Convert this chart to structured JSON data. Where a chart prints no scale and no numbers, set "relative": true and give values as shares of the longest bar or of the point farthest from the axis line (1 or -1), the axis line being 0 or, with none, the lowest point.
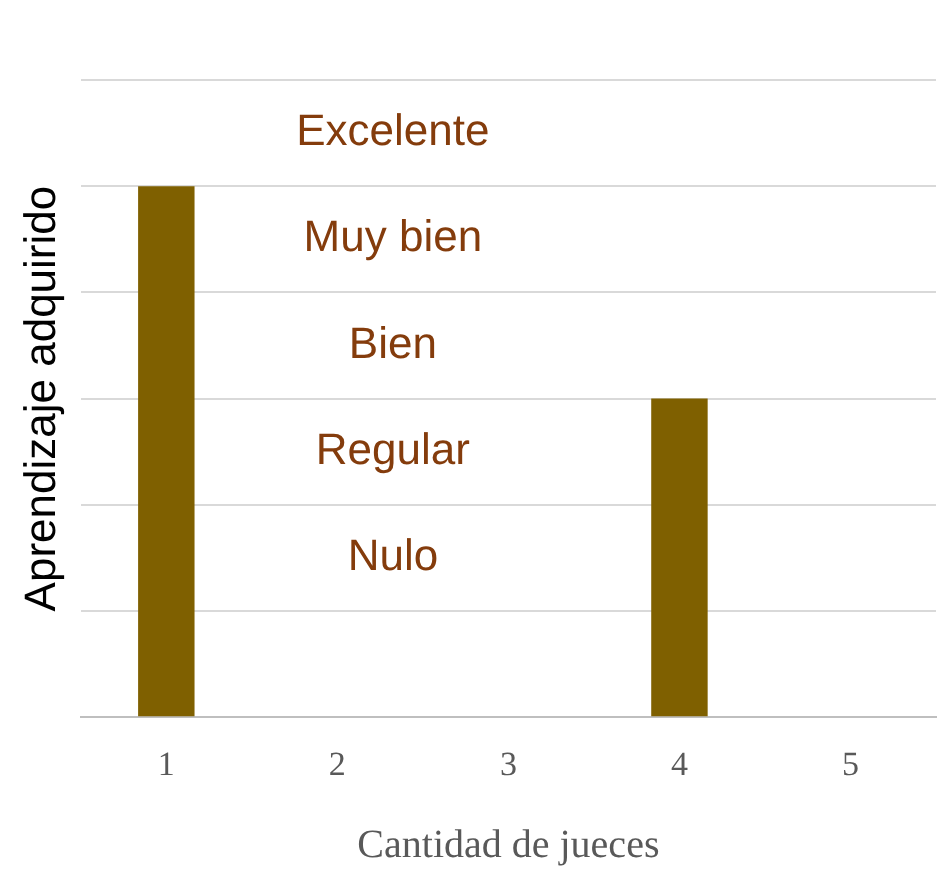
{
  "chart_data": {
    "type": "bar",
    "xlabel": "Cantidad de jueces",
    "ylabel": "Aprendizaje adquirido",
    "categories": [
      "1",
      "2",
      "3",
      "4",
      "5"
    ],
    "values": [
      1,
      0,
      0,
      0.6,
      0
    ],
    "color": "#7f6000",
    "relative": true,
    "annotations": [
      "Excelente",
      "Muy bien",
      "Bien",
      "Regular",
      "Nulo"
    ],
    "grid": "y",
    "legend": false
  }
}
